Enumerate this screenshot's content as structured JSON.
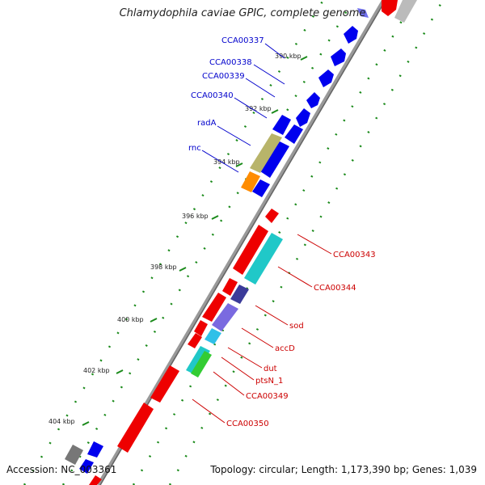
{
  "title": "Chlamydophila caviae GPIC, complete genome",
  "footer": {
    "accession": "Accession: NC_003361",
    "summary": "Topology: circular; Length: 1,173,390 bp; Genes: 1,039"
  },
  "ticks": [
    "390 kbp",
    "392 kbp",
    "394 kbp",
    "396 kbp",
    "398 kbp",
    "400 kbp",
    "402 kbp",
    "404 kbp"
  ],
  "genes_left": [
    "CCA00337",
    "CCA00338",
    "CCA00339",
    "CCA00340",
    "radA",
    "rnc"
  ],
  "genes_right": [
    "CCA00343",
    "CCA00344",
    "sod",
    "accD",
    "dut",
    "ptsN_1",
    "CCA00349",
    "CCA00350"
  ],
  "colors": {
    "forward": "#0000ee",
    "reverse": "#ee0000",
    "backbone": "#888888",
    "dots": "#228b22"
  }
}
